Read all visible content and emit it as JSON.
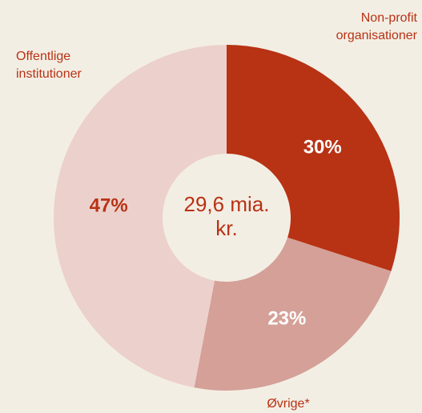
{
  "chart_data": {
    "type": "donut",
    "center_label": "29,6 mia. kr.",
    "categories": [
      "Non-profit organisationer",
      "Øvrige*",
      "Offentlige institutioner"
    ],
    "values": [
      30,
      23,
      47
    ],
    "value_labels": [
      "30%",
      "23%",
      "47%"
    ],
    "colors": [
      "#b83214",
      "#d4a097",
      "#ecd0cb"
    ],
    "label_colors": [
      "#ffffff",
      "#ffffff",
      "#b83214"
    ]
  }
}
